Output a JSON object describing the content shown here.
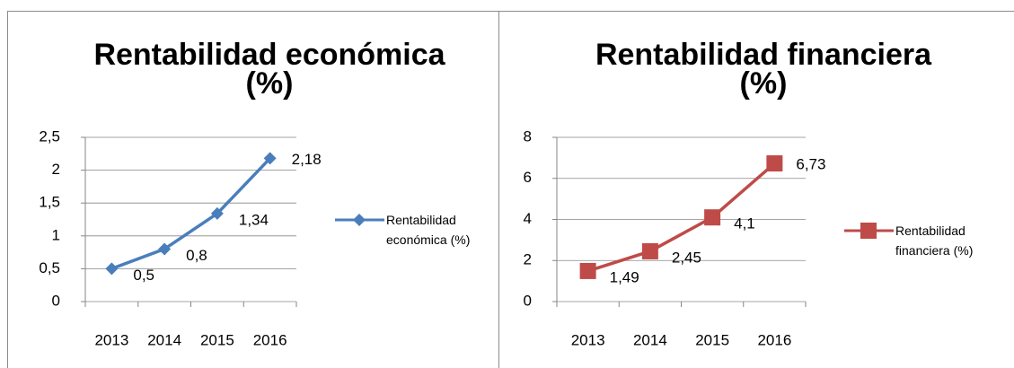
{
  "chart_data": [
    {
      "type": "line",
      "title": "Rentabilidad económica (%)",
      "categories": [
        "2013",
        "2014",
        "2015",
        "2016"
      ],
      "series": [
        {
          "name": "Rentabilidad económica (%)",
          "color": "#4a7ebb",
          "marker": "diamond",
          "values": [
            0.5,
            0.8,
            1.34,
            2.18
          ],
          "value_labels": [
            "0,5",
            "0,8",
            "1,34",
            "2,18"
          ]
        }
      ],
      "ylim": [
        0,
        2.5
      ],
      "yticks": [
        0,
        {
          "value": 0.5,
          "label": "0,5"
        },
        1,
        {
          "value": 1.5,
          "label": "1,5"
        },
        2,
        {
          "value": 2.5,
          "label": "2,5"
        }
      ],
      "grid": true,
      "legend": "right"
    },
    {
      "type": "line",
      "title": "Rentabilidad financiera (%)",
      "categories": [
        "2013",
        "2014",
        "2015",
        "2016"
      ],
      "series": [
        {
          "name": "Rentabilidad financiera (%)",
          "color": "#be4b48",
          "marker": "square",
          "values": [
            1.49,
            2.45,
            4.1,
            6.73
          ],
          "value_labels": [
            "1,49",
            "2,45",
            "4,1",
            "6,73"
          ]
        }
      ],
      "ylim": [
        0,
        8
      ],
      "yticks": [
        0,
        2,
        4,
        6,
        8
      ],
      "grid": true,
      "legend": "right"
    }
  ]
}
